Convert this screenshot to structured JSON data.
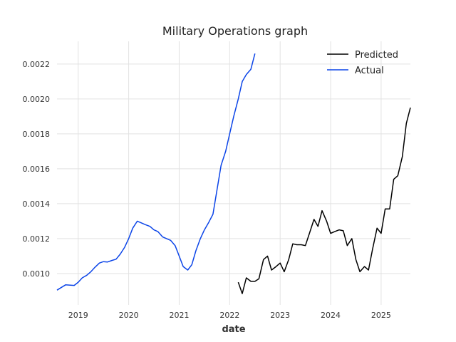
{
  "chart_data": {
    "type": "line",
    "title": "Military Operations graph",
    "xlabel": "date",
    "ylabel": "",
    "grid": true,
    "legend_placement": "top-right",
    "xlim": [
      2018.58,
      2025.58
    ],
    "ylim": [
      0.00082,
      0.00233
    ],
    "x_ticks": [
      2019,
      2020,
      2021,
      2022,
      2023,
      2024,
      2025
    ],
    "x_tick_labels": [
      "2019",
      "2020",
      "2021",
      "2022",
      "2023",
      "2024",
      "2025"
    ],
    "y_ticks": [
      0.001,
      0.0012,
      0.0014,
      0.0016,
      0.0018,
      0.002,
      0.0022
    ],
    "y_tick_labels": [
      "0.0010",
      "0.0012",
      "0.0014",
      "0.0016",
      "0.0018",
      "0.0020",
      "0.0022"
    ],
    "series": [
      {
        "name": "Predicted",
        "color": "#000000",
        "x": [
          2022.17,
          2022.25,
          2022.33,
          2022.42,
          2022.5,
          2022.58,
          2022.67,
          2022.75,
          2022.83,
          2022.92,
          2023.0,
          2023.08,
          2023.17,
          2023.25,
          2023.33,
          2023.42,
          2023.5,
          2023.58,
          2023.67,
          2023.75,
          2023.83,
          2023.92,
          2024.0,
          2024.08,
          2024.17,
          2024.25,
          2024.33,
          2024.42,
          2024.5,
          2024.58,
          2024.67,
          2024.75,
          2024.83,
          2024.92,
          2025.0,
          2025.08,
          2025.17,
          2025.25,
          2025.33,
          2025.42,
          2025.5,
          2025.58
        ],
        "y": [
          0.00095,
          0.000885,
          0.000975,
          0.000955,
          0.000955,
          0.00097,
          0.00108,
          0.0011,
          0.00102,
          0.00104,
          0.00106,
          0.00101,
          0.00108,
          0.00117,
          0.001165,
          0.001165,
          0.00116,
          0.00123,
          0.00131,
          0.00127,
          0.00136,
          0.0013,
          0.00123,
          0.00124,
          0.00125,
          0.001245,
          0.00116,
          0.0012,
          0.00108,
          0.00101,
          0.00104,
          0.00102,
          0.00114,
          0.00126,
          0.00123,
          0.00137,
          0.00137,
          0.00154,
          0.00156,
          0.00167,
          0.00186,
          0.00195
        ]
      },
      {
        "name": "Actual",
        "color": "#0c45e8",
        "x": [
          2018.58,
          2018.75,
          2018.92,
          2019.0,
          2019.08,
          2019.17,
          2019.25,
          2019.33,
          2019.42,
          2019.5,
          2019.58,
          2019.67,
          2019.75,
          2019.83,
          2019.92,
          2020.0,
          2020.08,
          2020.17,
          2020.25,
          2020.33,
          2020.42,
          2020.5,
          2020.58,
          2020.67,
          2020.75,
          2020.83,
          2020.92,
          2021.0,
          2021.08,
          2021.17,
          2021.25,
          2021.33,
          2021.42,
          2021.5,
          2021.58,
          2021.67,
          2021.75,
          2021.83,
          2021.92,
          2022.0,
          2022.08,
          2022.17,
          2022.25,
          2022.33,
          2022.42,
          2022.5
        ],
        "y": [
          0.000905,
          0.000935,
          0.000932,
          0.00095,
          0.000975,
          0.00099,
          0.00101,
          0.001035,
          0.00106,
          0.001068,
          0.001066,
          0.001075,
          0.001082,
          0.00111,
          0.00115,
          0.0012,
          0.00126,
          0.0013,
          0.00129,
          0.00128,
          0.00127,
          0.00125,
          0.00124,
          0.00121,
          0.0012,
          0.00119,
          0.00116,
          0.0011,
          0.00104,
          0.00102,
          0.00105,
          0.00113,
          0.0012,
          0.00125,
          0.00129,
          0.00134,
          0.00148,
          0.00162,
          0.0017,
          0.0018,
          0.0019,
          0.002,
          0.0021,
          0.00214,
          0.00217,
          0.00226
        ]
      }
    ]
  }
}
